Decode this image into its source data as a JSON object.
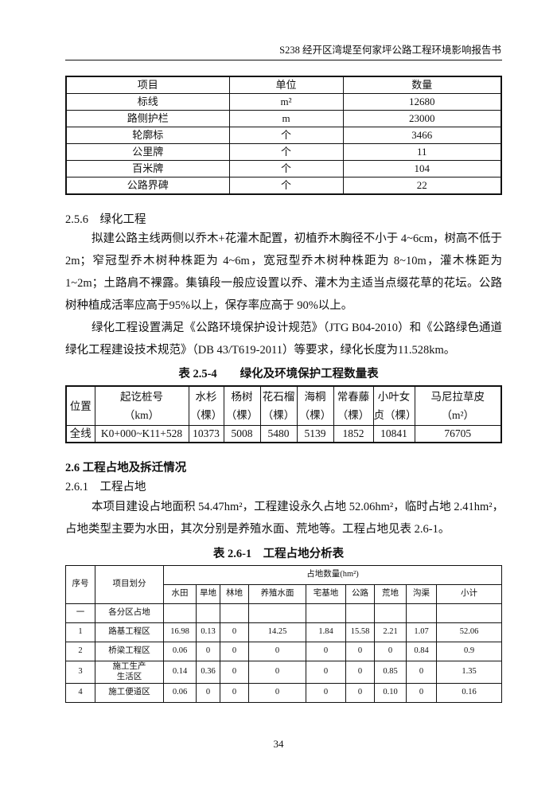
{
  "header": {
    "title": "S238 经开区湾堤至何家坪公路工程环境影响报告书"
  },
  "table1": {
    "headers": [
      "项目",
      "单位",
      "数量"
    ],
    "rows": [
      [
        "标线",
        "m²",
        "12680"
      ],
      [
        "路侧护栏",
        "m",
        "23000"
      ],
      [
        "轮廓标",
        "个",
        "3466"
      ],
      [
        "公里牌",
        "个",
        "11"
      ],
      [
        "百米牌",
        "个",
        "104"
      ],
      [
        "公路界碑",
        "个",
        "22"
      ]
    ]
  },
  "s256": {
    "heading": "2.5.6　绿化工程",
    "p1": [
      "拟建公路主线两侧以乔木+花灌木配置，初植乔木胸径不小于 4~6cm，树高不低于",
      "2m；窄冠型乔木树种株距为 4~6m，宽冠型乔木树种株距为 8~10m，灌木株距为",
      "1~2m；土路肩不裸露。集镇段一般应设置以乔、灌木为主适当点缀花草的花坛。公路",
      "树种植成活率应高于95%以上，保存率应高于 90%以上。"
    ],
    "p2": [
      "绿化工程设置满足《公路环境保护设计规范》（JTG B04-2010）和《公路绿色通道",
      "绿化工程建设技术规范》（DB 43/T619-2011）等要求，绿化长度为11.528km。"
    ]
  },
  "table2": {
    "caption": "表 2.5-4　　绿化及环境保护工程数量表",
    "headers": [
      [
        "位置",
        ""
      ],
      [
        "起讫桩号",
        "（km）"
      ],
      [
        "水杉",
        "（棵）"
      ],
      [
        "杨树",
        "（棵）"
      ],
      [
        "花石榴",
        "（棵）"
      ],
      [
        "海桐",
        "（棵）"
      ],
      [
        "常春藤",
        "（棵）"
      ],
      [
        "小叶女",
        "贞（棵）"
      ],
      [
        "马尼拉草皮",
        "（m²）"
      ]
    ],
    "row": [
      "全线",
      "K0+000~K11+528",
      "10373",
      "5008",
      "5480",
      "5139",
      "1852",
      "10841",
      "76705"
    ]
  },
  "s26": {
    "heading": "2.6 工程占地及拆迁情况",
    "sub": "2.6.1　工程占地",
    "p": [
      "本项目建设占地面积 54.47hm²，工程建设永久占地 52.06hm²，临时占地 2.41hm²，",
      "占地类型主要为水田，其次分别是养殖水面、荒地等。工程占地见表 2.6-1。"
    ]
  },
  "table3": {
    "caption": "表 2.6-1　工程占地分析表",
    "h_no": "序号",
    "h_item": "项目划分",
    "h_group": "占地数量(hm²)",
    "cols": [
      "水田",
      "旱地",
      "林地",
      "养殖水面",
      "宅基地",
      "公路",
      "荒地",
      "沟渠",
      "小计"
    ],
    "rows": [
      [
        "一",
        "各分区占地",
        "",
        "",
        "",
        "",
        "",
        "",
        "",
        "",
        ""
      ],
      [
        "1",
        "路基工程区",
        "16.98",
        "0.13",
        "0",
        "14.25",
        "1.84",
        "15.58",
        "2.21",
        "1.07",
        "52.06"
      ],
      [
        "2",
        "桥梁工程区",
        "0.06",
        "0",
        "0",
        "0",
        "0",
        "0",
        "0",
        "0.84",
        "0.9"
      ],
      [
        "3",
        "施工生产\n生活区",
        "0.14",
        "0.36",
        "0",
        "0",
        "0",
        "0",
        "0.85",
        "0",
        "1.35"
      ],
      [
        "4",
        "施工便道区",
        "0.06",
        "0",
        "0",
        "0",
        "0",
        "0",
        "0.10",
        "0",
        "0.16"
      ]
    ]
  },
  "page_number": "34"
}
